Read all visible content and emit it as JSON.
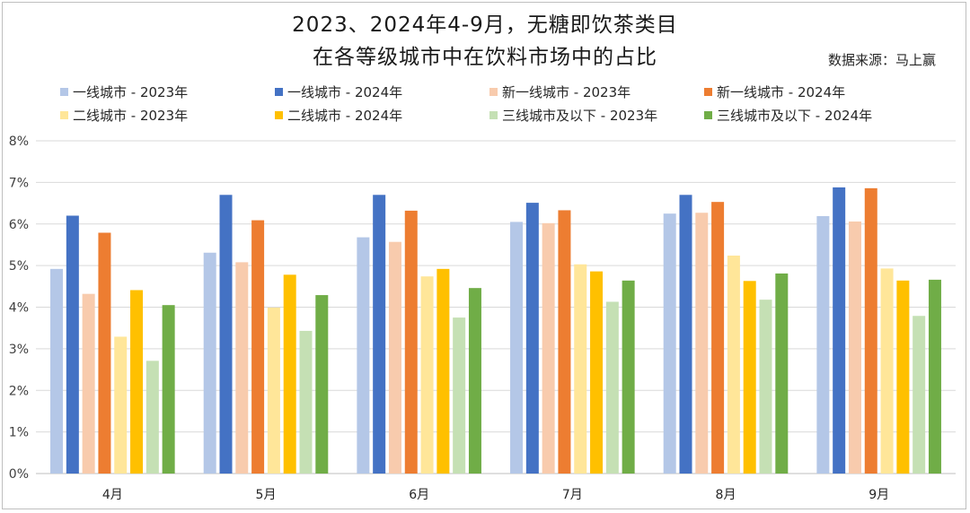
{
  "title_line1": "2023、2024年4-9月，无糖即饮茶类目",
  "title_line2": "在各等级城市中在饮料市场中的占比",
  "source": "数据来源：马上赢",
  "chart_data": {
    "type": "bar",
    "categories": [
      "4月",
      "5月",
      "6月",
      "7月",
      "8月",
      "9月"
    ],
    "ylim": [
      0,
      8
    ],
    "yticks": [
      "0%",
      "1%",
      "2%",
      "3%",
      "4%",
      "5%",
      "6%",
      "7%",
      "8%"
    ],
    "grid": true,
    "legend_position": "top",
    "series": [
      {
        "name": "一线城市 - 2023年",
        "color": "#b4c7e7",
        "values": [
          4.92,
          5.31,
          5.68,
          6.05,
          6.25,
          6.19
        ]
      },
      {
        "name": "一线城市 - 2024年",
        "color": "#4472c4",
        "values": [
          6.2,
          6.7,
          6.7,
          6.51,
          6.7,
          6.88
        ]
      },
      {
        "name": "新一线城市 - 2023年",
        "color": "#f8cbad",
        "values": [
          4.32,
          5.08,
          5.57,
          6.02,
          6.27,
          6.06
        ]
      },
      {
        "name": "新一线城市 - 2024年",
        "color": "#ed7d31",
        "values": [
          5.79,
          6.09,
          6.32,
          6.33,
          6.53,
          6.86
        ]
      },
      {
        "name": "二线城市 - 2023年",
        "color": "#ffe699",
        "values": [
          3.29,
          3.99,
          4.74,
          5.03,
          5.24,
          4.93
        ]
      },
      {
        "name": "二线城市 - 2024年",
        "color": "#ffc000",
        "values": [
          4.41,
          4.78,
          4.92,
          4.86,
          4.63,
          4.64
        ]
      },
      {
        "name": "三线城市及以下 - 2023年",
        "color": "#c5e0b4",
        "values": [
          2.71,
          3.43,
          3.75,
          4.13,
          4.18,
          3.79
        ]
      },
      {
        "name": "三线城市及以下 - 2024年",
        "color": "#70ad47",
        "values": [
          4.05,
          4.29,
          4.46,
          4.64,
          4.81,
          4.66
        ]
      }
    ]
  }
}
